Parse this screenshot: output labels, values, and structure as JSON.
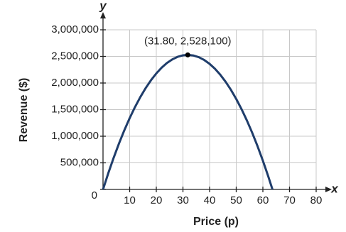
{
  "chart_data": {
    "type": "line",
    "x_label": "Price (p)",
    "y_label": "Revenue ($)",
    "x_axis_letter": "x",
    "y_axis_letter": "y",
    "x": [
      0,
      2,
      4,
      6,
      8,
      10,
      12,
      14,
      16,
      18,
      20,
      22,
      24,
      26,
      28,
      30,
      31.8,
      34,
      36,
      38,
      40,
      42,
      44,
      46,
      48,
      50,
      52,
      54,
      56,
      58,
      60,
      62,
      63.6
    ],
    "series": [
      {
        "color": "#1f3d6b",
        "values": [
          0,
          308000,
          596000,
          864000,
          1112000,
          1340000,
          1548000,
          1736000,
          1904000,
          2052000,
          2180000,
          2288000,
          2376000,
          2444000,
          2492000,
          2520000,
          2528100,
          2516000,
          2484000,
          2432000,
          2360000,
          2268000,
          2156000,
          2024000,
          1872000,
          1700000,
          1508000,
          1296000,
          1064000,
          812000,
          540000,
          248000,
          0
        ]
      }
    ],
    "annotation": {
      "text": "(31.80, 2,528,100)",
      "x": 31.8,
      "y": 2528100
    },
    "xlim": [
      0,
      80
    ],
    "ylim": [
      0,
      3000000
    ],
    "xticks": [
      10,
      20,
      30,
      40,
      50,
      60,
      70,
      80
    ],
    "yticks": [
      0,
      {
        "value": 500000,
        "label": "500,000"
      },
      {
        "value": 1000000,
        "label": "1,000,000"
      },
      {
        "value": 1500000,
        "label": "1,500,000"
      },
      {
        "value": 2000000,
        "label": "2,000,000"
      },
      {
        "value": 2500000,
        "label": "2,500,000"
      },
      {
        "value": 3000000,
        "label": "3,000,000"
      }
    ],
    "grid": true
  }
}
